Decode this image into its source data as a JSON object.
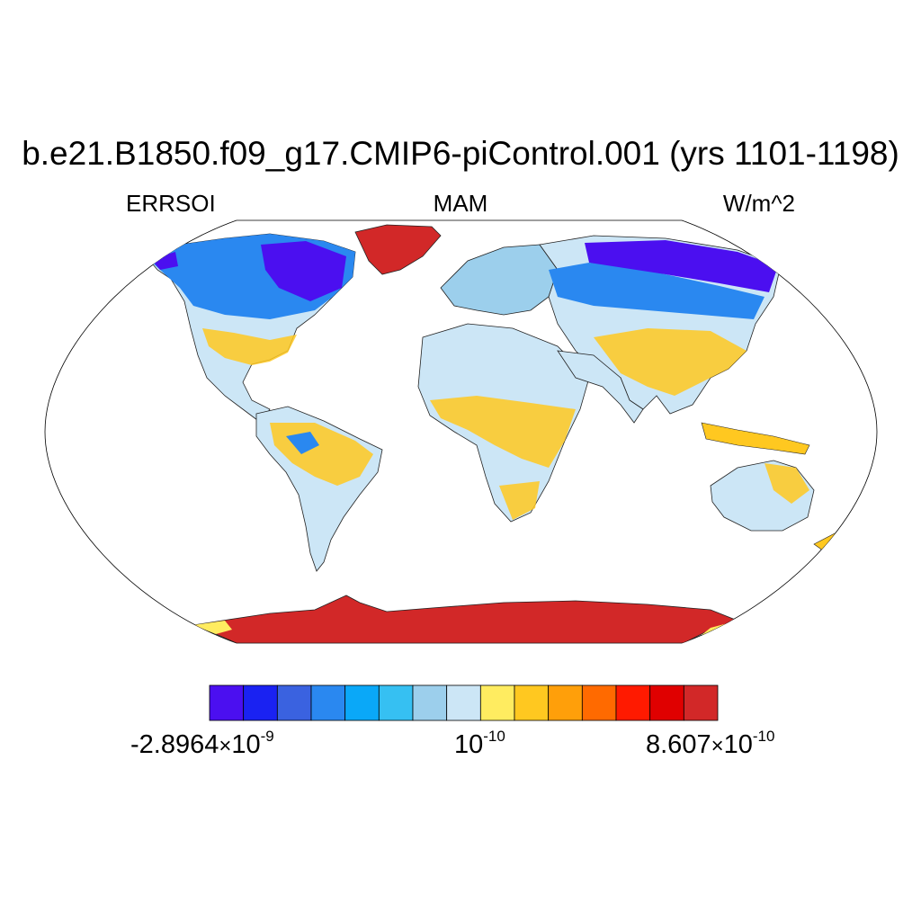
{
  "title": "b.e21.B1850.f09_g17.CMIP6-piControl.001 (yrs 1101-1198)",
  "left_string": "ERRSOI",
  "center_string": "MAM",
  "right_string": "W/m^2",
  "colorbar": {
    "colors": [
      "#4b0ff0",
      "#1a22f2",
      "#3a62e0",
      "#2a88f0",
      "#0aa8f8",
      "#36c0f2",
      "#9ccfec",
      "#cce6f6",
      "#ffec60",
      "#ffc820",
      "#ff9f0a",
      "#ff6a00",
      "#ff1a00",
      "#e00000",
      "#d22828"
    ],
    "labels": {
      "left_mantissa": "-2.8964",
      "left_exponent": "-9",
      "mid_base": "10",
      "mid_exponent": "-10",
      "right_mantissa": "8.607",
      "right_exponent": "-10",
      "times": "×",
      "ten": "10"
    }
  },
  "map": {
    "projection": "Robinson",
    "ocean_color": "#ffffff",
    "land_outline_color": "#000000"
  }
}
